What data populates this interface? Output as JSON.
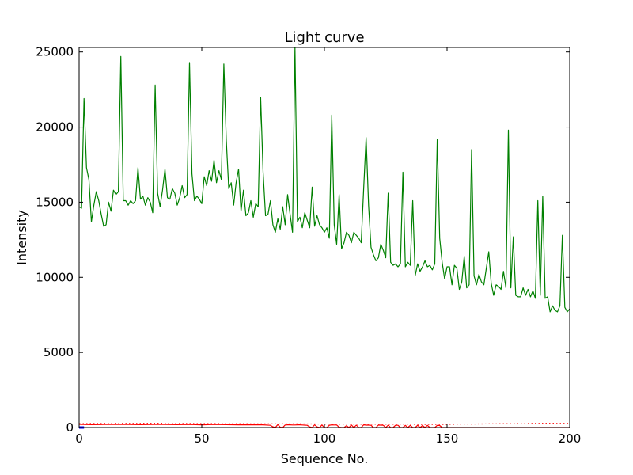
{
  "chart_data": {
    "type": "line",
    "title": "Light curve",
    "xlabel": "Sequence No.",
    "ylabel": "Intensity",
    "xlim": [
      0,
      200
    ],
    "ylim": [
      0,
      25300
    ],
    "xticks": [
      0,
      50,
      100,
      150,
      200
    ],
    "yticks": [
      0,
      5000,
      10000,
      15000,
      20000,
      25000
    ],
    "grid": false,
    "legend": "none",
    "series": [
      {
        "color": "#008000",
        "style": "solid",
        "x": [
          0,
          1,
          2,
          3,
          4,
          5,
          6,
          7,
          8,
          9,
          10,
          11,
          12,
          13,
          14,
          15,
          16,
          17,
          18,
          19,
          20,
          21,
          22,
          23,
          24,
          25,
          26,
          27,
          28,
          29,
          30,
          31,
          32,
          33,
          34,
          35,
          36,
          37,
          38,
          39,
          40,
          41,
          42,
          43,
          44,
          45,
          46,
          47,
          48,
          49,
          50,
          51,
          52,
          53,
          54,
          55,
          56,
          57,
          58,
          59,
          60,
          61,
          62,
          63,
          64,
          65,
          66,
          67,
          68,
          69,
          70,
          71,
          72,
          73,
          74,
          75,
          76,
          77,
          78,
          79,
          80,
          81,
          82,
          83,
          84,
          85,
          86,
          87,
          88,
          89,
          90,
          91,
          92,
          93,
          94,
          95,
          96,
          97,
          98,
          99,
          100,
          101,
          102,
          103,
          104,
          105,
          106,
          107,
          108,
          109,
          110,
          111,
          112,
          113,
          114,
          115,
          116,
          117,
          118,
          119,
          120,
          121,
          122,
          123,
          124,
          125,
          126,
          127,
          128,
          129,
          130,
          131,
          132,
          133,
          134,
          135,
          136,
          137,
          138,
          139,
          140,
          141,
          142,
          143,
          144,
          145,
          146,
          147,
          148,
          149,
          150,
          151,
          152,
          153,
          154,
          155,
          156,
          157,
          158,
          159,
          160,
          161,
          162,
          163,
          164,
          165,
          166,
          167,
          168,
          169,
          170,
          171,
          172,
          173,
          174,
          175,
          176,
          177,
          178,
          179,
          180,
          181,
          182,
          183,
          184,
          185,
          186,
          187,
          188,
          189,
          190,
          191,
          192,
          193,
          194,
          195,
          196,
          197,
          198,
          199,
          200
        ],
        "values": [
          14700,
          14600,
          21900,
          17300,
          16500,
          13700,
          14800,
          15700,
          15100,
          14200,
          13400,
          13500,
          15000,
          14400,
          15800,
          15500,
          15700,
          24700,
          15100,
          15100,
          14800,
          15100,
          14900,
          15100,
          17300,
          15200,
          15400,
          14800,
          15300,
          15000,
          14300,
          22800,
          15600,
          14700,
          15800,
          17200,
          15300,
          15200,
          15900,
          15600,
          14800,
          15300,
          16100,
          15300,
          15500,
          24300,
          16900,
          15100,
          15400,
          15200,
          14900,
          16700,
          16100,
          17100,
          16400,
          17800,
          16300,
          17100,
          16500,
          24200,
          19100,
          15900,
          16300,
          14800,
          16300,
          17200,
          14400,
          15800,
          14100,
          14300,
          15100,
          14000,
          14900,
          14700,
          22000,
          17000,
          14100,
          14200,
          15100,
          13500,
          13000,
          13900,
          13200,
          14700,
          13500,
          15500,
          14200,
          13000,
          25300,
          13700,
          14000,
          13300,
          14300,
          13800,
          13300,
          16000,
          13400,
          14100,
          13500,
          13300,
          13000,
          13300,
          12600,
          20800,
          13500,
          12200,
          15500,
          11900,
          12300,
          13000,
          12800,
          12300,
          13000,
          12800,
          12600,
          12300,
          15900,
          19300,
          14800,
          12000,
          11500,
          11100,
          11300,
          12200,
          11800,
          11300,
          15600,
          11000,
          10800,
          10900,
          10700,
          10900,
          17000,
          10700,
          11000,
          10800,
          15100,
          10100,
          10900,
          10400,
          10700,
          11100,
          10700,
          10800,
          10500,
          10900,
          19200,
          12600,
          11000,
          9900,
          10700,
          10700,
          9500,
          10800,
          10600,
          9200,
          9700,
          11400,
          9300,
          9500,
          18500,
          10100,
          9500,
          10200,
          9700,
          9500,
          10600,
          11700,
          9600,
          8800,
          9500,
          9400,
          9200,
          10400,
          9300,
          19800,
          9300,
          12700,
          8800,
          8700,
          8700,
          9300,
          8800,
          9200,
          8700,
          9100,
          8600,
          15100,
          8800,
          15400,
          8600,
          8700,
          7700,
          8100,
          7800,
          7700,
          8100,
          12800,
          8000,
          7700,
          7900
        ]
      },
      {
        "color": "#ff0000",
        "style": "solid",
        "x": [
          0,
          5,
          10,
          15,
          20,
          25,
          30,
          35,
          40,
          45,
          50,
          55,
          60,
          65,
          70,
          75,
          78,
          79,
          80,
          81,
          82,
          83,
          84,
          85,
          86,
          87,
          88,
          89,
          90,
          91,
          92,
          93,
          94,
          95,
          96,
          97,
          98,
          99,
          100,
          101,
          102,
          103,
          104,
          105,
          106,
          107,
          108,
          109,
          110,
          111,
          112,
          113,
          114,
          115,
          116,
          117,
          118,
          119,
          120,
          121,
          122,
          123,
          124,
          125,
          126,
          127,
          128,
          129,
          130,
          131,
          132,
          133,
          134,
          135,
          136,
          137,
          138,
          139,
          140,
          141,
          142,
          143,
          144,
          145,
          146,
          147,
          148,
          149,
          150,
          151,
          152,
          153,
          154,
          155,
          156,
          157,
          158,
          159,
          160,
          161,
          162,
          163,
          164,
          165,
          166,
          167,
          168,
          169,
          170,
          171,
          172,
          173,
          174,
          175,
          176,
          177,
          178,
          179,
          180,
          181,
          182,
          183,
          184,
          185,
          186,
          187,
          188,
          189,
          190,
          191,
          192,
          193,
          194,
          195,
          196,
          197,
          198,
          199,
          200
        ],
        "values": [
          210,
          190,
          200,
          200,
          200,
          190,
          200,
          200,
          190,
          200,
          180,
          200,
          190,
          180,
          180,
          180,
          150,
          50,
          0,
          200,
          20,
          0,
          170,
          180,
          180,
          170,
          170,
          180,
          180,
          170,
          160,
          150,
          40,
          0,
          180,
          40,
          0,
          170,
          0,
          0,
          150,
          180,
          170,
          170,
          20,
          0,
          0,
          120,
          0,
          170,
          0,
          160,
          0,
          0,
          180,
          160,
          160,
          150,
          0,
          0,
          160,
          160,
          150,
          0,
          160,
          0,
          0,
          150,
          150,
          0,
          0,
          140,
          0,
          140,
          0,
          0,
          150,
          0,
          130,
          0,
          140,
          0,
          0,
          0,
          140,
          130,
          0,
          0,
          0,
          0,
          0,
          0,
          0,
          0,
          0,
          0,
          0,
          0,
          0,
          0,
          0,
          0,
          0,
          0,
          0,
          0,
          0,
          0,
          0,
          0,
          0,
          0,
          0,
          0,
          0,
          0,
          0,
          0,
          0,
          0,
          0,
          0,
          0,
          0,
          0,
          0,
          0,
          0,
          0,
          0,
          0,
          0,
          0,
          0,
          0,
          0,
          0,
          0,
          0
        ]
      },
      {
        "color": "#ff0000",
        "style": "dotted",
        "x": [
          0,
          10,
          20,
          30,
          40,
          50,
          60,
          70,
          80,
          90,
          100,
          110,
          120,
          130,
          140,
          150,
          160,
          170,
          180,
          190,
          200
        ],
        "values": [
          260,
          270,
          270,
          280,
          270,
          260,
          260,
          250,
          240,
          240,
          230,
          220,
          220,
          220,
          210,
          210,
          230,
          250,
          260,
          280,
          270
        ]
      },
      {
        "color": "#0000ff",
        "style": "solid",
        "x": [
          0,
          1,
          2
        ],
        "values": [
          0,
          0,
          0
        ]
      }
    ]
  }
}
